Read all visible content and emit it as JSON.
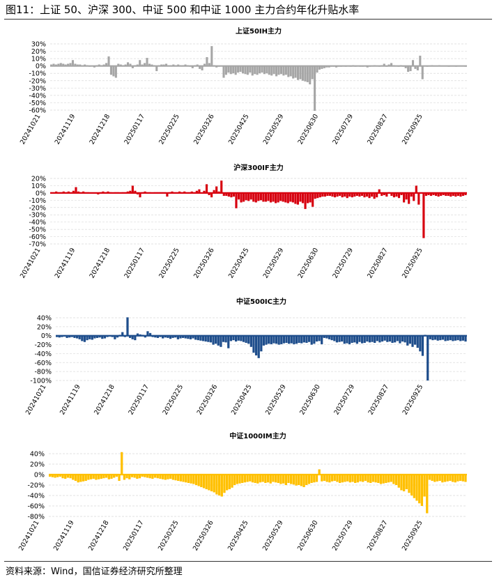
{
  "figure_title": "图11：上证 50、沪深 300、中证 500 和中证 1000 主力合约年化升贴水率",
  "source": "资料来源：Wind，国信证券经济研究所整理",
  "chart_data": [
    {
      "type": "bar",
      "title": "上证50IH主力",
      "color": "#a6a6a6",
      "ylim": [
        -60,
        30
      ],
      "yticks": [
        30,
        20,
        10,
        0,
        -10,
        -20,
        -30,
        -40,
        -50,
        -60
      ],
      "ytick_labels": [
        "30%",
        "20%",
        "10%",
        "0%",
        "-10%",
        "-20%",
        "-30%",
        "-40%",
        "-50%",
        "-60%"
      ],
      "x_labels": [
        "20241021",
        "20241119",
        "20241218",
        "20250117",
        "20250225",
        "20250326",
        "20250425",
        "20250529",
        "20250630",
        "20250729",
        "20250827",
        "20250925"
      ],
      "grid": true,
      "values": [
        2,
        3,
        2,
        3,
        4,
        3,
        2,
        3,
        4,
        8,
        3,
        2,
        2,
        1,
        2,
        1,
        -1,
        0,
        -2,
        1,
        2,
        1,
        2,
        4,
        13,
        -12,
        -14,
        -16,
        3,
        2,
        1,
        2,
        5,
        3,
        -3,
        1,
        2,
        8,
        2,
        4,
        11,
        3,
        2,
        1,
        -7,
        1,
        2,
        2,
        3,
        1,
        1,
        2,
        1,
        2,
        1,
        1,
        2,
        1,
        -1,
        -3,
        1,
        2,
        -4,
        -6,
        3,
        12,
        4,
        27,
        1,
        -2,
        -1,
        0,
        -16,
        -12,
        -9,
        -11,
        -10,
        -12,
        -9,
        -8,
        -10,
        -11,
        -12,
        -9,
        -13,
        -11,
        -12,
        -10,
        -9,
        -11,
        -10,
        -12,
        -13,
        -11,
        -14,
        -12,
        -11,
        -13,
        -12,
        -15,
        -14,
        -17,
        -16,
        -19,
        -18,
        -20,
        -21,
        -22,
        -25,
        -18,
        -61,
        -9,
        -5,
        -4,
        -3,
        -2,
        -2,
        -1,
        -1,
        -2,
        -1,
        -1,
        0,
        -1,
        0,
        -1,
        1,
        -1,
        0,
        -1,
        -1,
        0,
        -2,
        -1,
        0,
        1,
        0,
        -1,
        1,
        3,
        -1,
        2,
        4,
        1,
        0,
        -1,
        1,
        -1,
        -3,
        -8,
        -7,
        8,
        -4,
        -6,
        14,
        -18,
        0,
        -1,
        0,
        1,
        0,
        0,
        1,
        0,
        0,
        0,
        -1,
        0,
        0,
        -1,
        0,
        0,
        0,
        -1
      ]
    },
    {
      "type": "bar",
      "title": "沪深300IF主力",
      "color": "#d7000f",
      "ylim": [
        -70,
        20
      ],
      "yticks": [
        20,
        10,
        0,
        -10,
        -20,
        -30,
        -40,
        -50,
        -60,
        -70
      ],
      "ytick_labels": [
        "20%",
        "10%",
        "0%",
        "-10%",
        "-20%",
        "-30%",
        "-40%",
        "-50%",
        "-60%",
        "-70%"
      ],
      "x_labels": [
        "20241021",
        "20241119",
        "20241218",
        "20250117",
        "20250225",
        "20250326",
        "20250425",
        "20250529",
        "20250630",
        "20250729",
        "20250827",
        "20250925"
      ],
      "grid": true,
      "values": [
        1,
        1,
        2,
        1,
        1,
        2,
        1,
        2,
        1,
        3,
        8,
        2,
        1,
        2,
        1,
        1,
        0,
        -1,
        0,
        -2,
        1,
        2,
        1,
        2,
        1,
        0,
        1,
        1,
        0,
        1,
        1,
        2,
        3,
        10,
        3,
        -2,
        -6,
        1,
        2,
        1,
        1,
        0,
        1,
        1,
        1,
        1,
        1,
        -5,
        1,
        2,
        1,
        1,
        2,
        1,
        2,
        1,
        1,
        2,
        1,
        3,
        5,
        -1,
        3,
        12,
        -3,
        -6,
        4,
        9,
        2,
        17,
        -4,
        -4,
        -5,
        -6,
        -5,
        -21,
        -9,
        -13,
        -12,
        -10,
        -11,
        -9,
        -12,
        -13,
        -11,
        -10,
        -12,
        -12,
        -11,
        -13,
        -12,
        -14,
        -13,
        -11,
        -12,
        -13,
        -14,
        -12,
        -13,
        -15,
        -16,
        -12,
        -14,
        -22,
        -14,
        -13,
        -19,
        -8,
        -7,
        -6,
        -5,
        -5,
        -4,
        -4,
        -5,
        -6,
        -5,
        -4,
        -6,
        -5,
        -7,
        -5,
        -6,
        -5,
        -4,
        -5,
        -4,
        -6,
        -5,
        -7,
        -5,
        -8,
        -6,
        5,
        -4,
        -3,
        -5,
        1,
        -4,
        -6,
        -5,
        -7,
        -3,
        -13,
        -9,
        -15,
        -5,
        -11,
        10,
        -16,
        0,
        -62,
        -4,
        -3,
        -4,
        -3,
        -4,
        -5,
        -4,
        -3,
        -4,
        -4,
        -5,
        -4,
        -5,
        -4,
        -5,
        -4,
        -3
      ]
    },
    {
      "type": "bar",
      "title": "中证500IC主力",
      "color": "#1f4e8c",
      "ylim": [
        -100,
        40
      ],
      "yticks": [
        40,
        20,
        0,
        -20,
        -40,
        -60,
        -80,
        -100
      ],
      "ytick_labels": [
        "40%",
        "20%",
        "0%",
        "-20%",
        "-40%",
        "-60%",
        "-80%",
        "-100%"
      ],
      "x_labels": [
        "20241021",
        "20241119",
        "20241218",
        "20250117",
        "20250225",
        "20250326",
        "20250425",
        "20250529",
        "20250630",
        "20250729",
        "20250827",
        "20250925"
      ],
      "grid": true,
      "values": [
        -3,
        -4,
        -3,
        -2,
        -5,
        -4,
        -3,
        -5,
        -6,
        -8,
        -12,
        -14,
        -10,
        -8,
        -9,
        -6,
        -5,
        -4,
        -7,
        -6,
        -3,
        -2,
        -3,
        -8,
        -4,
        2,
        8,
        -3,
        41,
        -5,
        -8,
        -10,
        5,
        3,
        2,
        -4,
        10,
        6,
        -3,
        -4,
        -5,
        -3,
        -6,
        -4,
        -5,
        -7,
        -5,
        -4,
        -8,
        -6,
        -5,
        -6,
        -7,
        -8,
        -6,
        -9,
        -10,
        -11,
        -12,
        -13,
        -14,
        -15,
        -20,
        -18,
        -22,
        -25,
        -14,
        -15,
        -28,
        -12,
        -10,
        -13,
        -11,
        -12,
        -14,
        -16,
        -18,
        -25,
        -38,
        -44,
        -50,
        -35,
        -22,
        -20,
        -18,
        -19,
        -17,
        -18,
        -20,
        -19,
        -17,
        -16,
        -18,
        -17,
        -19,
        -18,
        -16,
        -17,
        -15,
        -16,
        -14,
        -20,
        -18,
        -13,
        -12,
        -19,
        -5,
        -6,
        -8,
        -10,
        -12,
        -15,
        -14,
        -13,
        -18,
        -17,
        -19,
        -16,
        -15,
        -18,
        -14,
        -17,
        -16,
        -13,
        -15,
        -14,
        -16,
        -12,
        -15,
        -13,
        -11,
        -14,
        -13,
        -16,
        -15,
        -12,
        -17,
        -13,
        -15,
        -22,
        -18,
        -25,
        -20,
        -27,
        -35,
        -45,
        2,
        -100,
        -8,
        -10,
        -9,
        -11,
        -10,
        -9,
        -12,
        -11,
        -10,
        -12,
        -11,
        -10,
        -12,
        -11,
        -13
      ]
    },
    {
      "type": "bar",
      "title": "中证1000IM主力",
      "color": "#ffc000",
      "ylim": [
        -80,
        40
      ],
      "yticks": [
        40,
        20,
        0,
        -20,
        -40,
        -60,
        -80
      ],
      "ytick_labels": [
        "40%",
        "20%",
        "0%",
        "-20%",
        "-40%",
        "-60%",
        "-80%"
      ],
      "x_labels": [
        "20241021",
        "20241119",
        "20241218",
        "20250117",
        "20250225",
        "20250326",
        "20250425",
        "20250529",
        "20250630",
        "20250729",
        "20250827",
        "20250925"
      ],
      "grid": true,
      "values": [
        -4,
        -5,
        -6,
        -5,
        -4,
        -7,
        -8,
        -6,
        -7,
        -10,
        -12,
        -15,
        -14,
        -13,
        -12,
        -10,
        -9,
        -8,
        -10,
        -9,
        -8,
        -7,
        -6,
        -9,
        -8,
        -6,
        -4,
        -12,
        43,
        -10,
        -7,
        -9,
        -5,
        -6,
        -8,
        -7,
        -4,
        -5,
        -6,
        -7,
        -8,
        -6,
        -7,
        -8,
        -9,
        -10,
        -9,
        -8,
        -10,
        -11,
        -12,
        -13,
        -14,
        -15,
        -16,
        -17,
        -18,
        -20,
        -22,
        -24,
        -26,
        -28,
        -30,
        -32,
        -34,
        -38,
        -40,
        -42,
        -35,
        -30,
        -28,
        -25,
        -20,
        -18,
        -17,
        -16,
        -15,
        -14,
        -13,
        -15,
        -16,
        -17,
        -15,
        -14,
        -16,
        -15,
        -17,
        -14,
        -15,
        -16,
        -18,
        -17,
        -20,
        -16,
        -18,
        -19,
        -21,
        -20,
        -22,
        -24,
        -20,
        -18,
        -16,
        -15,
        -14,
        10,
        -13,
        -12,
        -14,
        -15,
        -13,
        -12,
        -14,
        -16,
        -15,
        -14,
        -13,
        -15,
        -14,
        -16,
        -15,
        -13,
        -14,
        -12,
        -15,
        -16,
        -14,
        -15,
        -16,
        -18,
        -17,
        -16,
        -15,
        -14,
        -18,
        -20,
        -25,
        -30,
        -32,
        -28,
        -35,
        -40,
        -45,
        -50,
        -55,
        -60,
        -42,
        -74,
        -10,
        -12,
        -14,
        -13,
        -12,
        -15,
        -14,
        -13,
        -12,
        -14,
        -15,
        -13,
        -12,
        -13,
        -14
      ]
    }
  ]
}
